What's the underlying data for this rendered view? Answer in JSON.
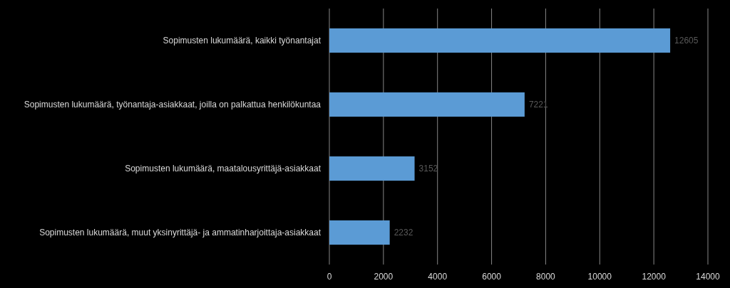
{
  "chart_data": {
    "type": "bar",
    "orientation": "horizontal",
    "categories": [
      "Sopimusten lukumäärä, kaikki työnantajat",
      "Sopimusten lukumäärä, työnantaja-asiakkaat, joilla on palkattua henkilökuntaa",
      "Sopimusten lukumäärä, maatalousyrittäjä-asiakkaat",
      "Sopimusten lukumäärä, muut yksinyrittäjä- ja ammatinharjoittaja-asiakkaat"
    ],
    "values": [
      12605,
      7221,
      3152,
      2232
    ],
    "color": "#5b9bd5",
    "xlim": [
      0,
      14000
    ],
    "xticks": [
      0,
      2000,
      4000,
      6000,
      8000,
      10000,
      12000,
      14000
    ],
    "grid": "x",
    "data_labels": true
  }
}
